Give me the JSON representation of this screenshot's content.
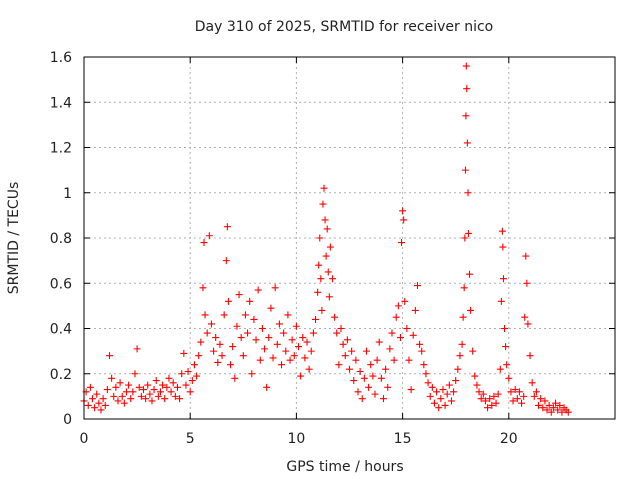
{
  "chart_data": {
    "type": "scatter",
    "title": "Day 310 of 2025, SRMTID for receiver nico",
    "xlabel": "GPS time / hours",
    "ylabel": "SRMTID / TECUs",
    "xlim": [
      0,
      25
    ],
    "ylim": [
      0,
      1.6
    ],
    "xticks": [
      0,
      5,
      10,
      15,
      20
    ],
    "yticks": [
      0,
      0.2,
      0.4,
      0.6,
      0.8,
      1,
      1.2,
      1.4,
      1.6
    ],
    "xtick_labels": [
      "0",
      "5",
      "10",
      "15",
      "20"
    ],
    "ytick_labels": [
      "0",
      "0.2",
      "0.4",
      "0.6",
      "0.8",
      "1",
      "1.2",
      "1.4",
      "1.6"
    ],
    "grid": true,
    "marker": "plus",
    "color": "#ff0000",
    "series": [
      {
        "name": "SRMTID",
        "points": [
          [
            0.0,
            0.08
          ],
          [
            0.1,
            0.12
          ],
          [
            0.2,
            0.06
          ],
          [
            0.3,
            0.14
          ],
          [
            0.4,
            0.09
          ],
          [
            0.5,
            0.05
          ],
          [
            0.6,
            0.11
          ],
          [
            0.7,
            0.07
          ],
          [
            0.8,
            0.04
          ],
          [
            0.9,
            0.09
          ],
          [
            1.0,
            0.06
          ],
          [
            1.1,
            0.13
          ],
          [
            1.2,
            0.28
          ],
          [
            1.3,
            0.18
          ],
          [
            1.4,
            0.1
          ],
          [
            1.5,
            0.14
          ],
          [
            1.6,
            0.08
          ],
          [
            1.7,
            0.16
          ],
          [
            1.8,
            0.1
          ],
          [
            1.9,
            0.07
          ],
          [
            2.0,
            0.12
          ],
          [
            2.1,
            0.15
          ],
          [
            2.2,
            0.09
          ],
          [
            2.3,
            0.12
          ],
          [
            2.4,
            0.2
          ],
          [
            2.5,
            0.31
          ],
          [
            2.6,
            0.14
          ],
          [
            2.7,
            0.1
          ],
          [
            2.8,
            0.13
          ],
          [
            2.9,
            0.09
          ],
          [
            3.0,
            0.15
          ],
          [
            3.1,
            0.11
          ],
          [
            3.2,
            0.08
          ],
          [
            3.3,
            0.13
          ],
          [
            3.4,
            0.17
          ],
          [
            3.5,
            0.1
          ],
          [
            3.6,
            0.12
          ],
          [
            3.7,
            0.15
          ],
          [
            3.8,
            0.09
          ],
          [
            3.9,
            0.14
          ],
          [
            4.0,
            0.18
          ],
          [
            4.1,
            0.12
          ],
          [
            4.2,
            0.16
          ],
          [
            4.3,
            0.1
          ],
          [
            4.4,
            0.14
          ],
          [
            4.5,
            0.09
          ],
          [
            4.6,
            0.2
          ],
          [
            4.7,
            0.29
          ],
          [
            4.8,
            0.15
          ],
          [
            4.9,
            0.21
          ],
          [
            5.0,
            0.12
          ],
          [
            5.1,
            0.17
          ],
          [
            5.2,
            0.24
          ],
          [
            5.3,
            0.19
          ],
          [
            5.4,
            0.28
          ],
          [
            5.5,
            0.34
          ],
          [
            5.6,
            0.58
          ],
          [
            5.65,
            0.78
          ],
          [
            5.7,
            0.46
          ],
          [
            5.8,
            0.38
          ],
          [
            5.9,
            0.81
          ],
          [
            6.0,
            0.42
          ],
          [
            6.1,
            0.3
          ],
          [
            6.2,
            0.36
          ],
          [
            6.3,
            0.25
          ],
          [
            6.4,
            0.33
          ],
          [
            6.5,
            0.28
          ],
          [
            6.6,
            0.46
          ],
          [
            6.7,
            0.7
          ],
          [
            6.75,
            0.85
          ],
          [
            6.8,
            0.52
          ],
          [
            6.9,
            0.24
          ],
          [
            7.0,
            0.32
          ],
          [
            7.1,
            0.18
          ],
          [
            7.2,
            0.41
          ],
          [
            7.3,
            0.55
          ],
          [
            7.4,
            0.36
          ],
          [
            7.5,
            0.28
          ],
          [
            7.6,
            0.46
          ],
          [
            7.7,
            0.38
          ],
          [
            7.8,
            0.52
          ],
          [
            7.9,
            0.2
          ],
          [
            8.0,
            0.44
          ],
          [
            8.1,
            0.35
          ],
          [
            8.2,
            0.57
          ],
          [
            8.3,
            0.26
          ],
          [
            8.4,
            0.4
          ],
          [
            8.5,
            0.31
          ],
          [
            8.6,
            0.14
          ],
          [
            8.7,
            0.36
          ],
          [
            8.8,
            0.49
          ],
          [
            8.9,
            0.27
          ],
          [
            9.0,
            0.58
          ],
          [
            9.1,
            0.33
          ],
          [
            9.2,
            0.42
          ],
          [
            9.3,
            0.24
          ],
          [
            9.4,
            0.38
          ],
          [
            9.5,
            0.3
          ],
          [
            9.6,
            0.46
          ],
          [
            9.7,
            0.26
          ],
          [
            9.8,
            0.35
          ],
          [
            9.9,
            0.28
          ],
          [
            10.0,
            0.41
          ],
          [
            10.1,
            0.32
          ],
          [
            10.2,
            0.19
          ],
          [
            10.3,
            0.36
          ],
          [
            10.4,
            0.27
          ],
          [
            10.5,
            0.34
          ],
          [
            10.6,
            0.22
          ],
          [
            10.7,
            0.3
          ],
          [
            10.8,
            0.38
          ],
          [
            10.9,
            0.44
          ],
          [
            11.0,
            0.56
          ],
          [
            11.05,
            0.68
          ],
          [
            11.1,
            0.8
          ],
          [
            11.15,
            0.62
          ],
          [
            11.2,
            0.48
          ],
          [
            11.25,
            0.95
          ],
          [
            11.3,
            1.02
          ],
          [
            11.35,
            0.88
          ],
          [
            11.4,
            0.72
          ],
          [
            11.45,
            0.84
          ],
          [
            11.5,
            0.65
          ],
          [
            11.55,
            0.54
          ],
          [
            11.6,
            0.76
          ],
          [
            11.7,
            0.62
          ],
          [
            11.8,
            0.45
          ],
          [
            11.9,
            0.38
          ],
          [
            12.0,
            0.24
          ],
          [
            12.1,
            0.4
          ],
          [
            12.2,
            0.33
          ],
          [
            12.3,
            0.28
          ],
          [
            12.4,
            0.35
          ],
          [
            12.5,
            0.22
          ],
          [
            12.6,
            0.3
          ],
          [
            12.7,
            0.17
          ],
          [
            12.8,
            0.26
          ],
          [
            12.9,
            0.12
          ],
          [
            13.0,
            0.21
          ],
          [
            13.1,
            0.09
          ],
          [
            13.2,
            0.18
          ],
          [
            13.3,
            0.3
          ],
          [
            13.4,
            0.14
          ],
          [
            13.5,
            0.24
          ],
          [
            13.6,
            0.19
          ],
          [
            13.7,
            0.11
          ],
          [
            13.8,
            0.26
          ],
          [
            13.9,
            0.34
          ],
          [
            14.0,
            0.18
          ],
          [
            14.1,
            0.09
          ],
          [
            14.2,
            0.22
          ],
          [
            14.3,
            0.14
          ],
          [
            14.4,
            0.31
          ],
          [
            14.5,
            0.38
          ],
          [
            14.6,
            0.26
          ],
          [
            14.7,
            0.45
          ],
          [
            14.8,
            0.5
          ],
          [
            14.9,
            0.36
          ],
          [
            14.95,
            0.78
          ],
          [
            15.0,
            0.92
          ],
          [
            15.05,
            0.88
          ],
          [
            15.1,
            0.52
          ],
          [
            15.2,
            0.4
          ],
          [
            15.3,
            0.26
          ],
          [
            15.4,
            0.13
          ],
          [
            15.5,
            0.37
          ],
          [
            15.6,
            0.48
          ],
          [
            15.7,
            0.59
          ],
          [
            15.8,
            0.33
          ],
          [
            15.9,
            0.3
          ],
          [
            16.0,
            0.24
          ],
          [
            16.1,
            0.2
          ],
          [
            16.2,
            0.16
          ],
          [
            16.3,
            0.1
          ],
          [
            16.4,
            0.14
          ],
          [
            16.5,
            0.07
          ],
          [
            16.6,
            0.12
          ],
          [
            16.7,
            0.05
          ],
          [
            16.8,
            0.09
          ],
          [
            16.9,
            0.13
          ],
          [
            17.0,
            0.06
          ],
          [
            17.1,
            0.11
          ],
          [
            17.2,
            0.15
          ],
          [
            17.3,
            0.08
          ],
          [
            17.4,
            0.12
          ],
          [
            17.5,
            0.17
          ],
          [
            17.6,
            0.22
          ],
          [
            17.7,
            0.28
          ],
          [
            17.8,
            0.33
          ],
          [
            17.85,
            0.45
          ],
          [
            17.9,
            0.58
          ],
          [
            17.93,
            0.8
          ],
          [
            17.96,
            1.1
          ],
          [
            17.98,
            1.34
          ],
          [
            18.0,
            1.56
          ],
          [
            18.02,
            1.46
          ],
          [
            18.05,
            1.22
          ],
          [
            18.08,
            1.0
          ],
          [
            18.1,
            0.82
          ],
          [
            18.15,
            0.64
          ],
          [
            18.2,
            0.48
          ],
          [
            18.3,
            0.3
          ],
          [
            18.4,
            0.19
          ],
          [
            18.5,
            0.15
          ],
          [
            18.6,
            0.12
          ],
          [
            18.7,
            0.09
          ],
          [
            18.8,
            0.11
          ],
          [
            18.9,
            0.08
          ],
          [
            19.0,
            0.05
          ],
          [
            19.1,
            0.09
          ],
          [
            19.2,
            0.06
          ],
          [
            19.3,
            0.1
          ],
          [
            19.4,
            0.07
          ],
          [
            19.5,
            0.11
          ],
          [
            19.6,
            0.22
          ],
          [
            19.65,
            0.52
          ],
          [
            19.7,
            0.83
          ],
          [
            19.72,
            0.76
          ],
          [
            19.75,
            0.62
          ],
          [
            19.8,
            0.4
          ],
          [
            19.85,
            0.32
          ],
          [
            19.9,
            0.24
          ],
          [
            20.0,
            0.18
          ],
          [
            20.1,
            0.12
          ],
          [
            20.2,
            0.08
          ],
          [
            20.3,
            0.13
          ],
          [
            20.4,
            0.09
          ],
          [
            20.5,
            0.12
          ],
          [
            20.6,
            0.07
          ],
          [
            20.7,
            0.1
          ],
          [
            20.75,
            0.45
          ],
          [
            20.8,
            0.72
          ],
          [
            20.85,
            0.6
          ],
          [
            20.9,
            0.42
          ],
          [
            21.0,
            0.28
          ],
          [
            21.1,
            0.16
          ],
          [
            21.2,
            0.1
          ],
          [
            21.3,
            0.12
          ],
          [
            21.4,
            0.06
          ],
          [
            21.5,
            0.09
          ],
          [
            21.6,
            0.05
          ],
          [
            21.7,
            0.08
          ],
          [
            21.8,
            0.04
          ],
          [
            21.9,
            0.06
          ],
          [
            22.0,
            0.03
          ],
          [
            22.1,
            0.05
          ],
          [
            22.2,
            0.07
          ],
          [
            22.3,
            0.04
          ],
          [
            22.4,
            0.06
          ],
          [
            22.5,
            0.03
          ],
          [
            22.6,
            0.05
          ],
          [
            22.7,
            0.04
          ],
          [
            22.8,
            0.03
          ]
        ]
      }
    ]
  }
}
